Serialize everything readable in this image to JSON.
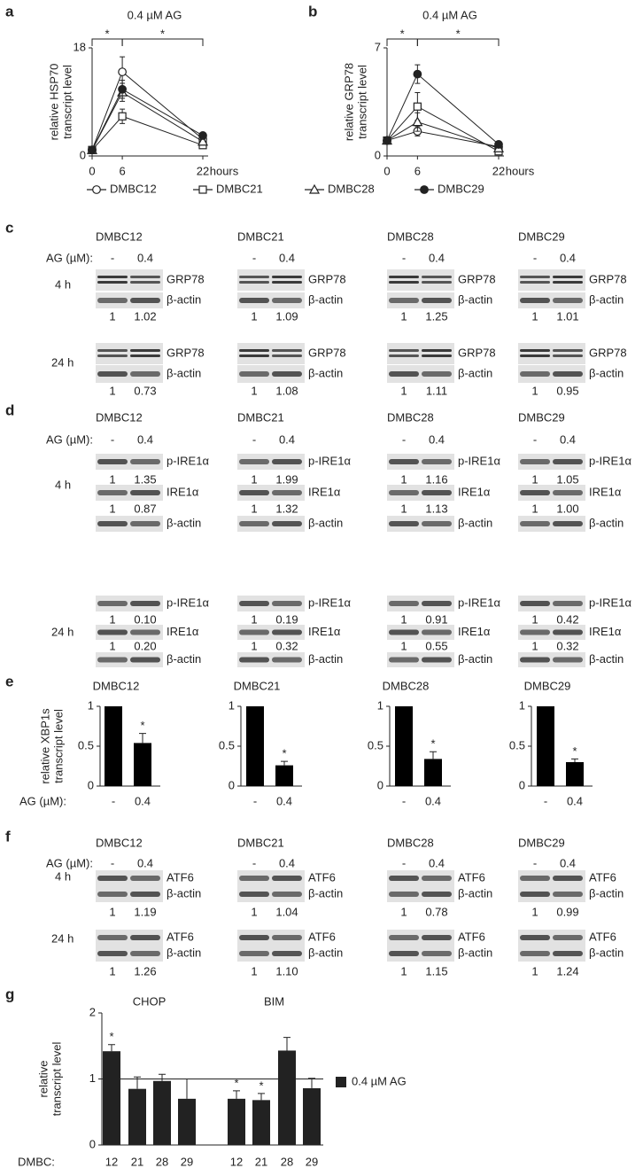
{
  "chart_data": [
    {
      "type": "line",
      "panel_label": "a",
      "title": "0.4 µM AG",
      "ylabel": [
        "relative HSP70",
        "transcript level"
      ],
      "xlabel": "hours",
      "x": [
        0,
        6,
        22
      ],
      "xlim": [
        0,
        22
      ],
      "xticks": [
        0,
        6,
        22
      ],
      "ylim": [
        0,
        18
      ],
      "yticks": [
        0,
        18
      ],
      "series": [
        {
          "name": "DMBC12",
          "marker": "circle-open",
          "values": [
            1,
            14,
            2.8
          ],
          "errors": [
            0,
            2.5,
            0.5
          ]
        },
        {
          "name": "DMBC21",
          "marker": "square-open",
          "values": [
            1,
            6.6,
            1.8
          ],
          "errors": [
            0,
            1.2,
            0.5
          ]
        },
        {
          "name": "DMBC28",
          "marker": "triangle-open",
          "values": [
            1,
            10.6,
            2.4
          ],
          "errors": [
            0,
            1.5,
            0.4
          ]
        },
        {
          "name": "DMBC29",
          "marker": "circle-filled",
          "values": [
            1,
            11.1,
            3.4
          ],
          "errors": [
            0,
            1.5,
            0.4
          ]
        }
      ],
      "significance": [
        {
          "from": 0,
          "to": 6,
          "label": "*"
        },
        {
          "from": 6,
          "to": 22,
          "label": "*"
        }
      ]
    },
    {
      "type": "line",
      "panel_label": "b",
      "title": "0.4 µM AG",
      "ylabel": [
        "relative GRP78",
        "transcript level"
      ],
      "xlabel": "hours",
      "x": [
        0,
        6,
        22
      ],
      "xlim": [
        0,
        22
      ],
      "xticks": [
        0,
        6,
        22
      ],
      "ylim": [
        0,
        7
      ],
      "yticks": [
        0,
        7
      ],
      "series": [
        {
          "marker": "circle-open",
          "values": [
            1,
            1.6,
            0.6
          ],
          "errors": [
            0,
            0.3,
            0.1
          ]
        },
        {
          "marker": "square-open",
          "values": [
            1,
            3.2,
            0.3
          ],
          "errors": [
            0,
            0.9,
            0.2
          ]
        },
        {
          "marker": "triangle-open",
          "values": [
            1,
            2.2,
            0.5
          ],
          "errors": [
            0,
            0.6,
            0.1
          ]
        },
        {
          "marker": "circle-filled",
          "values": [
            1,
            5.3,
            0.75
          ],
          "errors": [
            0,
            0.6,
            0.2
          ]
        }
      ],
      "significance": [
        {
          "from": 0,
          "to": 6,
          "label": "*"
        },
        {
          "from": 6,
          "to": 22,
          "label": "*"
        }
      ]
    },
    {
      "type": "bar",
      "panel_label": "e",
      "title": "DMBC12",
      "ylabel": [
        "relative XBP1s",
        "transcript level"
      ],
      "xlabel": "AG (µM):",
      "categories": [
        "-",
        "0.4"
      ],
      "values": [
        1,
        0.54
      ],
      "errors": [
        0,
        0.12
      ],
      "ylim": [
        0,
        1
      ],
      "yticks": [
        0,
        0.5,
        1
      ],
      "color": "#000000",
      "annotations": [
        {
          "index": 1,
          "label": "*"
        }
      ]
    },
    {
      "type": "bar",
      "title": "DMBC21",
      "categories": [
        "-",
        "0.4"
      ],
      "values": [
        1,
        0.26
      ],
      "errors": [
        0,
        0.05
      ],
      "ylim": [
        0,
        1
      ],
      "yticks": [
        0,
        0.5,
        1
      ],
      "color": "#000000",
      "annotations": [
        {
          "index": 1,
          "label": "*"
        }
      ]
    },
    {
      "type": "bar",
      "title": "DMBC28",
      "categories": [
        "-",
        "0.4"
      ],
      "values": [
        1,
        0.34
      ],
      "errors": [
        0,
        0.09
      ],
      "ylim": [
        0,
        1
      ],
      "yticks": [
        0,
        0.5,
        1
      ],
      "color": "#000000",
      "annotations": [
        {
          "index": 1,
          "label": "*"
        }
      ]
    },
    {
      "type": "bar",
      "title": "DMBC29",
      "categories": [
        "-",
        "0.4"
      ],
      "values": [
        1,
        0.3
      ],
      "errors": [
        0,
        0.04
      ],
      "ylim": [
        0,
        1
      ],
      "yticks": [
        0,
        0.5,
        1
      ],
      "color": "#000000",
      "annotations": [
        {
          "index": 1,
          "label": "*"
        }
      ]
    },
    {
      "type": "bar",
      "panel_label": "g",
      "ylabel": [
        "relative",
        "transcript level"
      ],
      "xlabel": "DMBC:",
      "legend": "0.4 µM AG",
      "color": "#222222",
      "groups": [
        {
          "label": "CHOP",
          "size": 4
        },
        {
          "label": "BIM",
          "size": 4
        }
      ],
      "categories": [
        "12",
        "21",
        "28",
        "29",
        "12",
        "21",
        "28",
        "29"
      ],
      "values": [
        1.42,
        0.85,
        0.97,
        0.7,
        0.7,
        0.68,
        1.43,
        0.86
      ],
      "errors": [
        0.1,
        0.18,
        0.1,
        0.3,
        0.12,
        0.1,
        0.2,
        0.15
      ],
      "ylim": [
        0,
        2
      ],
      "yticks": [
        0,
        1,
        2
      ],
      "hline": 1,
      "annotations": [
        {
          "index": 0,
          "label": "*"
        },
        {
          "index": 4,
          "label": "*"
        },
        {
          "index": 5,
          "label": "*"
        }
      ]
    }
  ],
  "blots": [
    {
      "letter": "c",
      "cells": [
        "DMBC12",
        "DMBC21",
        "DMBC28",
        "DMBC29"
      ],
      "treatment": "AG (µM):",
      "conditions": [
        "-",
        "0.4"
      ],
      "timepoints": [
        {
          "label": "4 h",
          "rows": [
            {
              "protein": "GRP78"
            },
            {
              "protein": "β-actin",
              "quant": [
                [
                  "1",
                  "1.02"
                ],
                [
                  "1",
                  "1.09"
                ],
                [
                  "1",
                  "1.25"
                ],
                [
                  "1",
                  "1.01"
                ]
              ]
            }
          ]
        },
        {
          "label": "24 h",
          "rows": [
            {
              "protein": "GRP78"
            },
            {
              "protein": "β-actin",
              "quant": [
                [
                  "1",
                  "0.73"
                ],
                [
                  "1",
                  "1.08"
                ],
                [
                  "1",
                  "1.11"
                ],
                [
                  "1",
                  "0.95"
                ]
              ]
            }
          ]
        }
      ]
    },
    {
      "letter": "d",
      "cells": [
        "DMBC12",
        "DMBC21",
        "DMBC28",
        "DMBC29"
      ],
      "treatment": "AG (µM):",
      "conditions": [
        "-",
        "0.4"
      ],
      "timepoints": [
        {
          "label": "4 h",
          "rows": [
            {
              "protein": "p-IRE1α",
              "quant": [
                [
                  "1",
                  "1.35"
                ],
                [
                  "1",
                  "1.99"
                ],
                [
                  "1",
                  "1.16"
                ],
                [
                  "1",
                  "1.05"
                ]
              ]
            },
            {
              "protein": "IRE1α",
              "quant": [
                [
                  "1",
                  "0.87"
                ],
                [
                  "1",
                  "1.32"
                ],
                [
                  "1",
                  "1.13"
                ],
                [
                  "1",
                  "1.00"
                ]
              ]
            },
            {
              "protein": "β-actin"
            }
          ]
        },
        {
          "label": "24 h",
          "rows": [
            {
              "protein": "p-IRE1α",
              "quant": [
                [
                  "1",
                  "0.10"
                ],
                [
                  "1",
                  "0.19"
                ],
                [
                  "1",
                  "0.91"
                ],
                [
                  "1",
                  "0.42"
                ]
              ]
            },
            {
              "protein": "IRE1α",
              "quant": [
                [
                  "1",
                  "0.20"
                ],
                [
                  "1",
                  "0.32"
                ],
                [
                  "1",
                  "0.55"
                ],
                [
                  "1",
                  "0.32"
                ]
              ]
            },
            {
              "protein": "β-actin"
            }
          ]
        }
      ]
    },
    {
      "letter": "f",
      "cells": [
        "DMBC12",
        "DMBC21",
        "DMBC28",
        "DMBC29"
      ],
      "treatment": "AG (µM):",
      "conditions": [
        "-",
        "0.4"
      ],
      "timepoints": [
        {
          "label": "4 h",
          "rows": [
            {
              "protein": "ATF6"
            },
            {
              "protein": "β-actin",
              "quant": [
                [
                  "1",
                  "1.19"
                ],
                [
                  "1",
                  "1.04"
                ],
                [
                  "1",
                  "0.78"
                ],
                [
                  "1",
                  "0.99"
                ]
              ]
            }
          ]
        },
        {
          "label": "24 h",
          "rows": [
            {
              "protein": "ATF6"
            },
            {
              "protein": "β-actin",
              "quant": [
                [
                  "1",
                  "1.26"
                ],
                [
                  "1",
                  "1.10"
                ],
                [
                  "1",
                  "1.15"
                ],
                [
                  "1",
                  "1.24"
                ]
              ]
            }
          ]
        }
      ]
    }
  ]
}
